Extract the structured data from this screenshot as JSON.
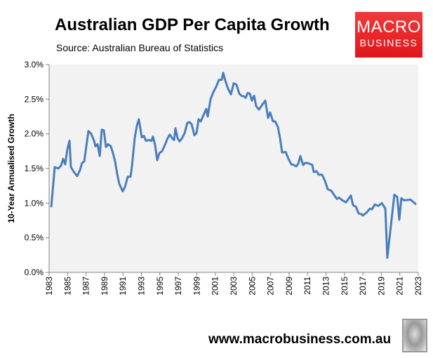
{
  "header": {
    "title": "Australian GDP Per Capita Growth",
    "subtitle": "Source: Australian Bureau of Statistics"
  },
  "logo": {
    "line1": "MACRO",
    "line2": "BUSINESS",
    "color": "#e8232a"
  },
  "footer": {
    "url": "www.macrobusiness.com.au"
  },
  "chart_data": {
    "type": "line",
    "title": "Australian GDP Per Capita Growth",
    "xlabel": "",
    "ylabel": "10-Year Annualised Growth",
    "xlim": [
      1983,
      2023
    ],
    "ylim": [
      0,
      3.0
    ],
    "yticks": [
      "0.0%",
      "0.5%",
      "1.0%",
      "1.5%",
      "2.0%",
      "2.5%",
      "3.0%"
    ],
    "xticks": [
      "1983",
      "1985",
      "1987",
      "1989",
      "1991",
      "1993",
      "1995",
      "1997",
      "1999",
      "2001",
      "2003",
      "2005",
      "2007",
      "2009",
      "2011",
      "2013",
      "2015",
      "2017",
      "2019",
      "2021",
      "2023"
    ],
    "grid": false,
    "plot_background": "#f2f2f2",
    "line_color": "#4a7ebb",
    "x": [
      1983.23,
      1983.61,
      1983.99,
      1984.29,
      1984.52,
      1984.75,
      1984.98,
      1985.21,
      1985.36,
      1985.74,
      1986.04,
      1986.35,
      1986.57,
      1986.8,
      1987.26,
      1987.56,
      1987.87,
      1988.02,
      1988.25,
      1988.48,
      1988.7,
      1988.93,
      1989.16,
      1989.39,
      1989.69,
      1989.92,
      1990.15,
      1990.38,
      1990.6,
      1990.98,
      1991.21,
      1991.52,
      1991.82,
      1991.97,
      1992.28,
      1992.51,
      1992.73,
      1993.04,
      1993.27,
      1993.49,
      1993.8,
      1994.1,
      1994.25,
      1994.48,
      1994.71,
      1994.94,
      1995.24,
      1995.55,
      1995.85,
      1996.08,
      1996.31,
      1996.54,
      1996.69,
      1996.92,
      1997.14,
      1997.37,
      1997.68,
      1997.98,
      1998.21,
      1998.44,
      1998.74,
      1998.97,
      1999.2,
      1999.43,
      1999.73,
      2000.03,
      2000.19,
      2000.49,
      2000.79,
      2001.1,
      2001.4,
      2001.71,
      2001.86,
      2002.09,
      2002.39,
      2002.7,
      2003.0,
      2003.3,
      2003.61,
      2003.84,
      2004.14,
      2004.29,
      2004.52,
      2004.75,
      2004.98,
      2005.21,
      2005.43,
      2005.74,
      2006.04,
      2006.42,
      2006.73,
      2006.95,
      2007.26,
      2007.49,
      2007.79,
      2008.02,
      2008.25,
      2008.63,
      2008.93,
      2009.24,
      2009.54,
      2009.77,
      2010.0,
      2010.22,
      2010.53,
      2010.76,
      2010.98,
      2011.37,
      2011.52,
      2011.67,
      2011.97,
      2012.2,
      2012.58,
      2012.89,
      2013.19,
      2013.57,
      2013.87,
      2014.18,
      2014.41,
      2014.79,
      2015.17,
      2015.7,
      2015.93,
      2016.23,
      2016.54,
      2016.84,
      2016.99,
      2017.45,
      2017.75,
      2017.98,
      2018.29,
      2018.67,
      2019.05,
      2019.43,
      2019.65,
      2020.41,
      2020.72,
      2020.95,
      2021.17,
      2021.48,
      2022.16,
      2022.77
    ],
    "y": [
      0.94,
      1.52,
      1.5,
      1.54,
      1.64,
      1.56,
      1.78,
      1.9,
      1.52,
      1.44,
      1.39,
      1.48,
      1.58,
      1.6,
      2.04,
      2.0,
      1.9,
      1.82,
      1.85,
      1.68,
      2.06,
      2.05,
      1.81,
      1.85,
      1.82,
      1.72,
      1.6,
      1.42,
      1.28,
      1.17,
      1.23,
      1.38,
      1.38,
      1.53,
      1.94,
      2.12,
      2.21,
      1.95,
      1.97,
      1.9,
      1.91,
      1.9,
      1.96,
      1.84,
      1.62,
      1.72,
      1.75,
      1.84,
      1.94,
      1.99,
      1.94,
      1.91,
      2.08,
      1.94,
      1.89,
      1.93,
      2.01,
      2.16,
      2.17,
      2.14,
      1.98,
      2.01,
      2.21,
      2.18,
      2.27,
      2.36,
      2.25,
      2.5,
      2.6,
      2.68,
      2.78,
      2.78,
      2.88,
      2.77,
      2.65,
      2.57,
      2.73,
      2.71,
      2.58,
      2.55,
      2.54,
      2.52,
      2.59,
      2.58,
      2.48,
      2.55,
      2.4,
      2.35,
      2.41,
      2.48,
      2.23,
      2.31,
      2.18,
      2.18,
      2.1,
      1.94,
      1.73,
      1.74,
      1.64,
      1.56,
      1.55,
      1.53,
      1.57,
      1.68,
      1.55,
      1.58,
      1.58,
      1.56,
      1.55,
      1.45,
      1.46,
      1.41,
      1.41,
      1.32,
      1.2,
      1.18,
      1.12,
      1.06,
      1.08,
      1.04,
      1.01,
      1.11,
      0.97,
      0.95,
      0.85,
      0.84,
      0.82,
      0.87,
      0.92,
      0.91,
      0.98,
      0.96,
      1.0,
      0.92,
      0.21,
      1.12,
      1.09,
      0.76,
      1.07,
      1.04,
      1.05,
      0.98
    ]
  }
}
